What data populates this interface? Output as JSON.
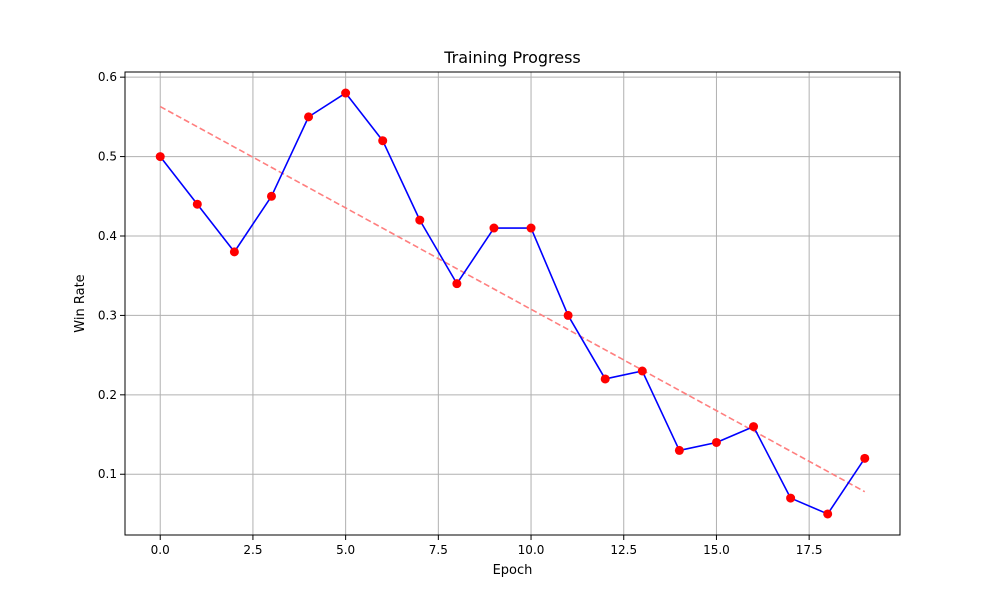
{
  "chart_data": {
    "type": "line",
    "title": "Training Progress",
    "xlabel": "Epoch",
    "ylabel": "Win Rate",
    "xlim": [
      -0.95,
      19.95
    ],
    "ylim": [
      0.0235,
      0.6065
    ],
    "xticks": [
      0.0,
      2.5,
      5.0,
      7.5,
      10.0,
      12.5,
      15.0,
      17.5
    ],
    "xtick_labels": [
      "0.0",
      "2.5",
      "5.0",
      "7.5",
      "10.0",
      "12.5",
      "15.0",
      "17.5"
    ],
    "yticks": [
      0.1,
      0.2,
      0.3,
      0.4,
      0.5,
      0.6
    ],
    "ytick_labels": [
      "0.1",
      "0.2",
      "0.3",
      "0.4",
      "0.5",
      "0.6"
    ],
    "grid": true,
    "series": [
      {
        "x": [
          0,
          1,
          2,
          3,
          4,
          5,
          6,
          7,
          8,
          9,
          10,
          11,
          12,
          13,
          14,
          15,
          16,
          17,
          18,
          19
        ],
        "values": [
          0.5,
          0.44,
          0.38,
          0.45,
          0.55,
          0.58,
          0.52,
          0.42,
          0.34,
          0.41,
          0.41,
          0.3,
          0.22,
          0.23,
          0.13,
          0.14,
          0.16,
          0.07,
          0.05,
          0.12
        ],
        "line_color": "#0000ff",
        "marker_color": "#ff0000",
        "style": "solid",
        "marker": "circle"
      },
      {
        "x": [
          0,
          19
        ],
        "values": [
          0.563,
          0.078
        ],
        "line_color": "#ff7f7f",
        "style": "dashed",
        "marker": "none"
      }
    ]
  }
}
